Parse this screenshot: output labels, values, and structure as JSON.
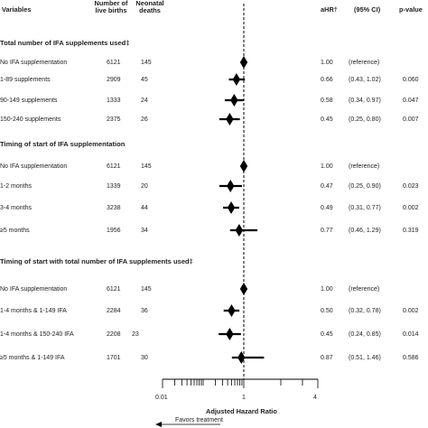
{
  "headers": {
    "variables": "Variables",
    "births": "Number of live births",
    "deaths": "Neonatal deaths",
    "ahr": "aHR†",
    "ci": "(95% CI)",
    "pvalue": "p-value"
  },
  "sections": [
    {
      "title": "Total number of IFA supplements used‡",
      "rows": [
        {
          "label": "No IFA supplementation",
          "births": "6121",
          "deaths": "145",
          "ahr": "1.00",
          "ci": "(reference)",
          "p": ""
        },
        {
          "label": "1-89 supplements",
          "births": "2909",
          "deaths": "45",
          "ahr": "0.66",
          "ci": "(0.43, 1.02)",
          "p": "0.060"
        },
        {
          "label": "90-149 supplements",
          "births": "1333",
          "deaths": "24",
          "ahr": "0.58",
          "ci": "(0.34, 0.97)",
          "p": "0.047"
        },
        {
          "label": "150-240 supplements",
          "births": "2375",
          "deaths": "26",
          "ahr": "0.45",
          "ci": "(0.25, 0.80)",
          "p": "0.007"
        }
      ]
    },
    {
      "title": "Timing of start of IFA supplementation",
      "rows": [
        {
          "label": "No IFA supplementation",
          "births": "6121",
          "deaths": "145",
          "ahr": "1.00",
          "ci": "(reference)",
          "p": ""
        },
        {
          "label": "1-2 months",
          "births": "1339",
          "deaths": "20",
          "ahr": "0.47",
          "ci": "(0.25, 0.90)",
          "p": "0.023"
        },
        {
          "label": "3-4 months",
          "births": "3238",
          "deaths": "44",
          "ahr": "0.49",
          "ci": "(0.31, 0.77)",
          "p": "0.002"
        },
        {
          "label": "≥5 months",
          "births": "1956",
          "deaths": "34",
          "ahr": "0.77",
          "ci": "(0.46, 1.29)",
          "p": "0.319"
        }
      ]
    },
    {
      "title": "Timing of start with total number of IFA supplements used‡",
      "rows": [
        {
          "label": "No IFA supplementation",
          "births": "6121",
          "deaths": "145",
          "ahr": "1.00",
          "ci": "(reference)",
          "p": ""
        },
        {
          "label": "1-4 months & 1-149 IFA",
          "births": "2284",
          "deaths": "36",
          "ahr": "0.50",
          "ci": "(0.32, 0.78)",
          "p": "0.002"
        },
        {
          "label": "1-4 months & 150-240 IFA",
          "births": "2208",
          "deaths": "23",
          "ahr": "0.45",
          "ci": "(0.24, 0.85)",
          "p": "0.014"
        },
        {
          "label": "≥5 months & 1-149 IFA",
          "births": "1701",
          "deaths": "30",
          "ahr": "0.87",
          "ci": "(0.51, 1.46)",
          "p": "0.586"
        }
      ]
    }
  ],
  "chart_data": {
    "type": "forest",
    "xlabel": "Adjusted Hazard Ratio",
    "x_ticks": [
      "0.01",
      "1",
      "4"
    ],
    "reference_line": 1,
    "annotation": "Favors treatment",
    "series": [
      {
        "label": "No IFA supplementation",
        "hr": 1.0,
        "lo": null,
        "hi": null
      },
      {
        "label": "1-89 supplements",
        "hr": 0.66,
        "lo": 0.43,
        "hi": 1.02
      },
      {
        "label": "90-149 supplements",
        "hr": 0.58,
        "lo": 0.34,
        "hi": 0.97
      },
      {
        "label": "150-240 supplements",
        "hr": 0.45,
        "lo": 0.25,
        "hi": 0.8
      },
      {
        "label": "No IFA supplementation",
        "hr": 1.0,
        "lo": null,
        "hi": null
      },
      {
        "label": "1-2 months",
        "hr": 0.47,
        "lo": 0.25,
        "hi": 0.9
      },
      {
        "label": "3-4 months",
        "hr": 0.49,
        "lo": 0.31,
        "hi": 0.77
      },
      {
        "label": "≥5 months",
        "hr": 0.77,
        "lo": 0.46,
        "hi": 1.29
      },
      {
        "label": "No IFA supplementation",
        "hr": 1.0,
        "lo": null,
        "hi": null
      },
      {
        "label": "1-4 months & 1-149 IFA",
        "hr": 0.5,
        "lo": 0.32,
        "hi": 0.78
      },
      {
        "label": "1-4 months & 150-240 IFA",
        "hr": 0.45,
        "lo": 0.24,
        "hi": 0.85
      },
      {
        "label": "≥5 months & 1-149 IFA",
        "hr": 0.87,
        "lo": 0.51,
        "hi": 1.46
      }
    ]
  }
}
